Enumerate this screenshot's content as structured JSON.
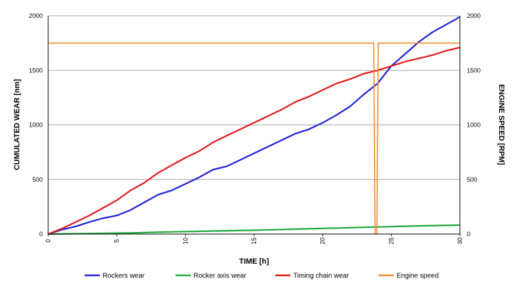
{
  "chart_data": {
    "type": "line",
    "title": "",
    "xlabel": "TIME [h]",
    "ylabel_left": "CUMULATED WEAR [nm]",
    "ylabel_right": "ENGINE SPEED [RPM]",
    "xlim": [
      0,
      30
    ],
    "ylim_left": [
      0,
      2000
    ],
    "ylim_right": [
      0,
      2000
    ],
    "x_ticks": [
      "0",
      "5",
      "10",
      "15",
      "20",
      "25",
      "30"
    ],
    "y_ticks_left": [
      "0",
      "500",
      "1000",
      "1500",
      "2000"
    ],
    "y_ticks_right": [
      "0",
      "500",
      "1000",
      "1500",
      "2000"
    ],
    "grid": true,
    "legend_position": "bottom",
    "series": [
      {
        "name": "Rockers wear",
        "axis": "left",
        "color": "#1f1fd6",
        "x": [
          0,
          1,
          2,
          3,
          4,
          5,
          6,
          7,
          8,
          9,
          10,
          11,
          12,
          13,
          14,
          15,
          16,
          17,
          18,
          19,
          20,
          21,
          22,
          23,
          24,
          25,
          26,
          27,
          28,
          29,
          30
        ],
        "y": [
          0,
          40,
          70,
          110,
          145,
          170,
          220,
          290,
          360,
          400,
          460,
          520,
          590,
          620,
          680,
          740,
          800,
          860,
          920,
          960,
          1020,
          1090,
          1170,
          1280,
          1380,
          1540,
          1650,
          1760,
          1850,
          1920,
          1990
        ]
      },
      {
        "name": "Rocker axis wear",
        "axis": "left",
        "color": "#1fa83c",
        "x": [
          0,
          3,
          6,
          9,
          12,
          15,
          18,
          21,
          24,
          27,
          30
        ],
        "y": [
          0,
          5,
          10,
          20,
          28,
          35,
          45,
          55,
          65,
          75,
          82
        ]
      },
      {
        "name": "Timing chain wear",
        "axis": "left",
        "color": "#e01818",
        "x": [
          0,
          1,
          2,
          3,
          4,
          5,
          6,
          7,
          8,
          9,
          10,
          11,
          12,
          13,
          14,
          15,
          16,
          17,
          18,
          19,
          20,
          21,
          22,
          23,
          24,
          25,
          26,
          27,
          28,
          29,
          30
        ],
        "y": [
          0,
          50,
          110,
          170,
          240,
          310,
          400,
          470,
          560,
          630,
          700,
          760,
          840,
          900,
          960,
          1020,
          1080,
          1140,
          1210,
          1260,
          1320,
          1380,
          1420,
          1470,
          1500,
          1540,
          1580,
          1610,
          1640,
          1680,
          1710
        ]
      },
      {
        "name": "Engine speed",
        "axis": "right",
        "color": "#f08c2a",
        "x": [
          0,
          23.6,
          23.72,
          23.82,
          23.95,
          24.05,
          24.2,
          30
        ],
        "y": [
          1750,
          1750,
          1750,
          0,
          0,
          1750,
          1750,
          1750
        ]
      }
    ]
  }
}
